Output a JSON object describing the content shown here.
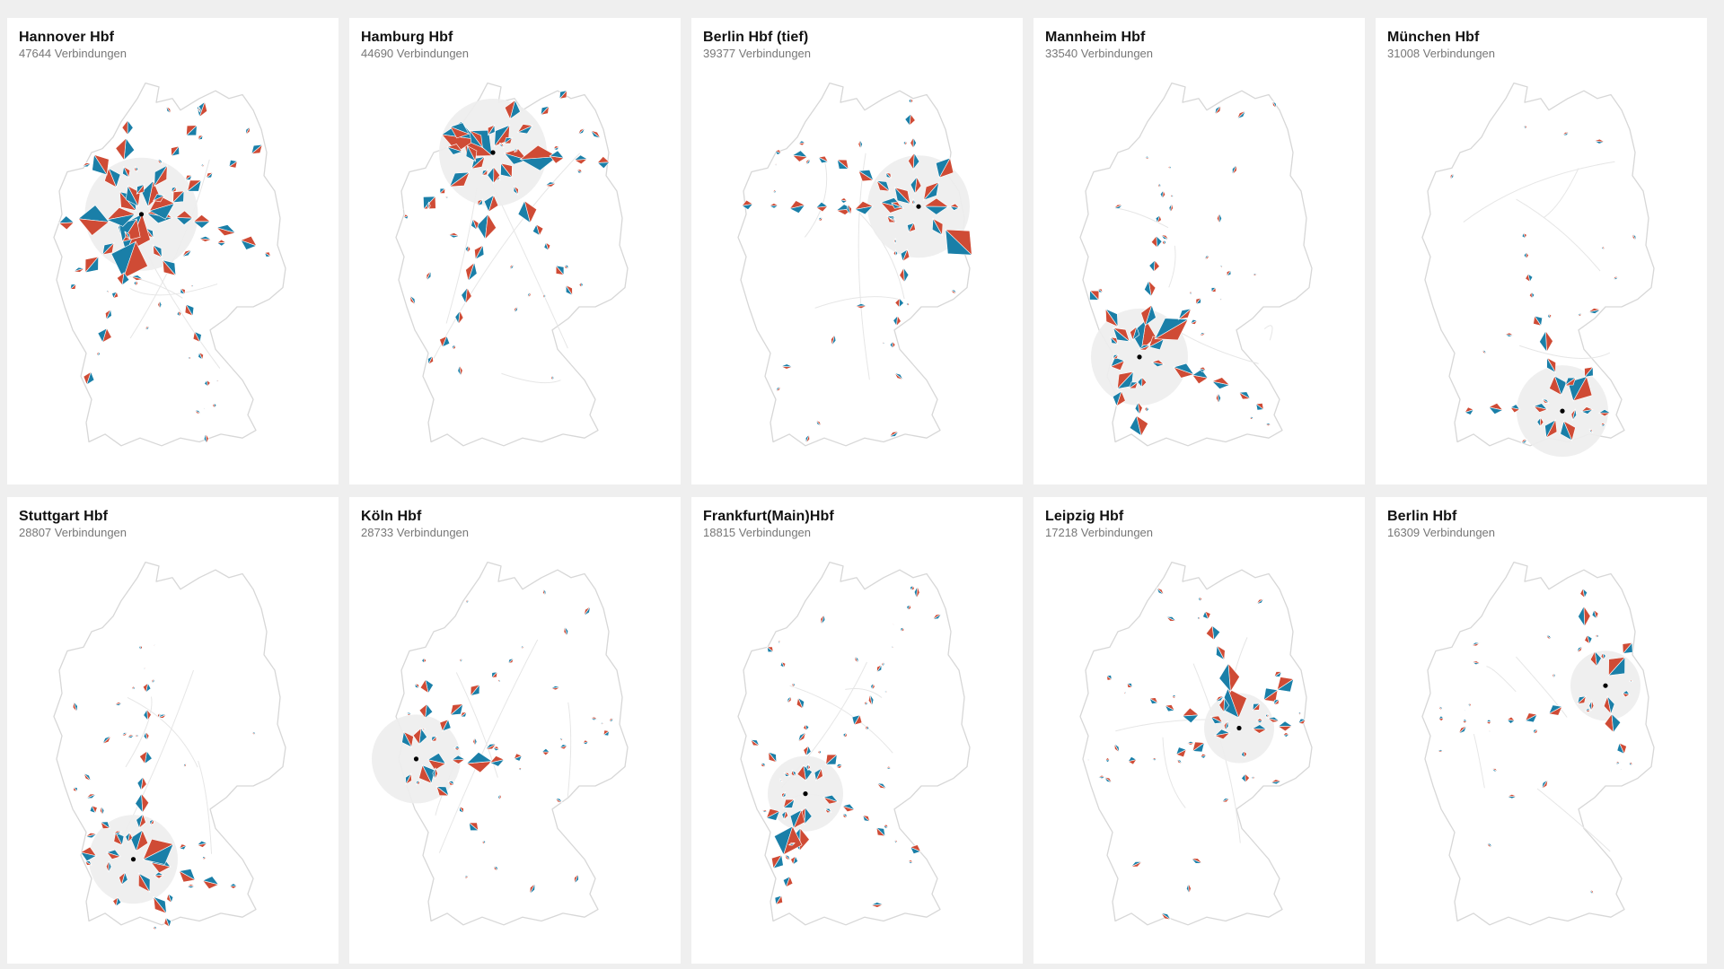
{
  "colors": {
    "red": "#cf4b35",
    "blue": "#1a7fa8",
    "outline": "#d7d7d7",
    "halo": "#eeeeee",
    "background": "#efefef",
    "card": "#ffffff"
  },
  "unit_label": "Verbindungen",
  "stations": [
    {
      "name": "Hannover Hbf",
      "count": "47644",
      "count_text": "47644 Verbindungen",
      "hub": [
        0.405,
        0.36
      ],
      "radius": 0.21,
      "seed": 11,
      "spokes": 9,
      "scale": 1.0
    },
    {
      "name": "Hamburg Hbf",
      "count": "44690",
      "count_text": "44690 Verbindungen",
      "hub": [
        0.44,
        0.2
      ],
      "radius": 0.2,
      "seed": 23,
      "spokes": 8,
      "scale": 0.95
    },
    {
      "name": "Berlin Hbf (tief)",
      "count": "39377",
      "count_text": "39377 Verbindungen",
      "hub": [
        0.75,
        0.34
      ],
      "radius": 0.19,
      "seed": 37,
      "spokes": 7,
      "scale": 0.9
    },
    {
      "name": "Mannheim Hbf",
      "count": "33540",
      "count_text": "33540 Verbindungen",
      "hub": [
        0.3,
        0.73
      ],
      "radius": 0.18,
      "seed": 41,
      "spokes": 7,
      "scale": 0.85
    },
    {
      "name": "München Hbf",
      "count": "31008",
      "count_text": "31008 Verbindungen",
      "hub": [
        0.6,
        0.87
      ],
      "radius": 0.17,
      "seed": 53,
      "spokes": 6,
      "scale": 0.82
    },
    {
      "name": "Stuttgart Hbf",
      "count": "28807",
      "count_text": "28807 Verbindungen",
      "hub": [
        0.375,
        0.79
      ],
      "radius": 0.165,
      "seed": 61,
      "spokes": 7,
      "scale": 0.8
    },
    {
      "name": "Köln Hbf",
      "count": "28733",
      "count_text": "28733 Verbindungen",
      "hub": [
        0.155,
        0.53
      ],
      "radius": 0.165,
      "seed": 71,
      "spokes": 7,
      "scale": 0.78
    },
    {
      "name": "Frankfurt(Main)Hbf",
      "count": "18815",
      "count_text": "18815 Verbindungen",
      "hub": [
        0.33,
        0.62
      ],
      "radius": 0.14,
      "seed": 83,
      "spokes": 7,
      "scale": 0.68
    },
    {
      "name": "Leipzig Hbf",
      "count": "17218",
      "count_text": "17218 Verbindungen",
      "hub": [
        0.67,
        0.45
      ],
      "radius": 0.13,
      "seed": 97,
      "spokes": 6,
      "scale": 0.65
    },
    {
      "name": "Berlin Hbf",
      "count": "16309",
      "count_text": "16309 Verbindungen",
      "hub": [
        0.76,
        0.34
      ],
      "radius": 0.13,
      "seed": 101,
      "spokes": 5,
      "scale": 0.6
    }
  ]
}
